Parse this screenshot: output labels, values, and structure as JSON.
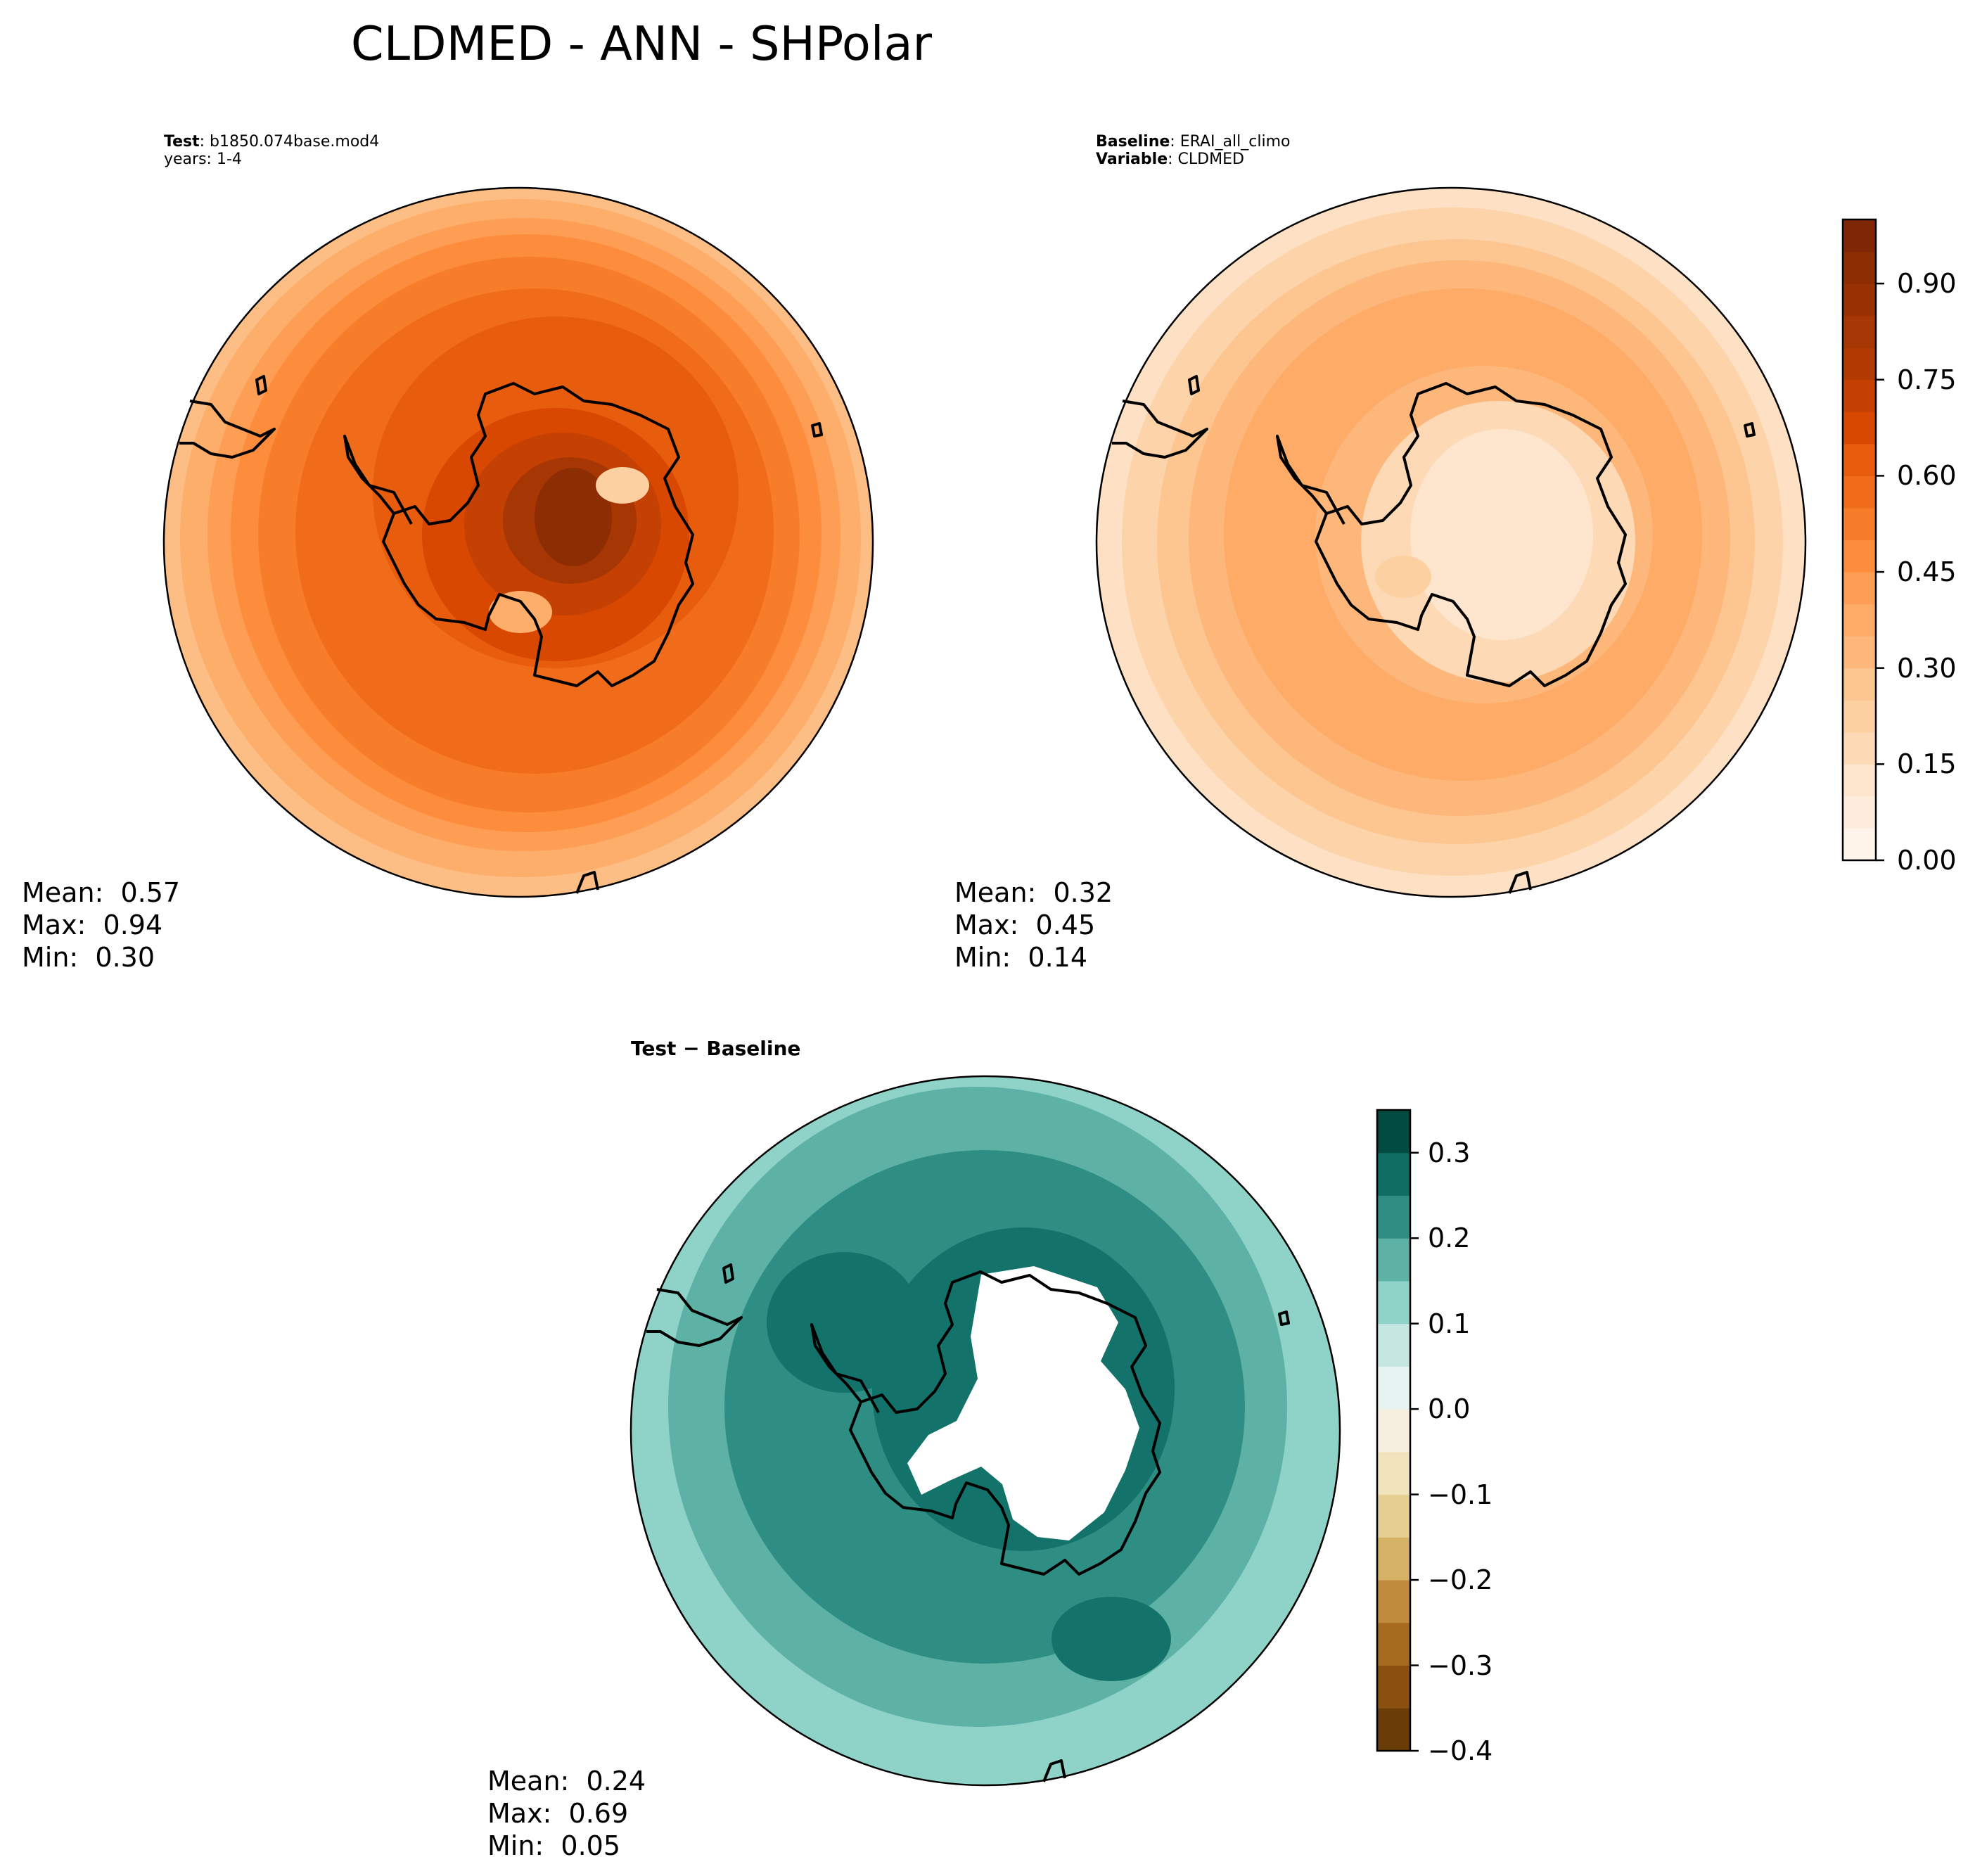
{
  "title": "CLDMED - ANN - SHPolar",
  "colors": {
    "test_ring": [
      "#fdbe85",
      "#fdae6b",
      "#fd9e54",
      "#fd8d3c",
      "#f87d2a",
      "#f16c1a",
      "#e85c0d"
    ],
    "base_ring": [
      "#fee1c4",
      "#fdd3a9",
      "#fdc590",
      "#fdb77a",
      "#fdab67",
      "#fdb77a"
    ],
    "diff_ring": [
      "#8fd3c8",
      "#5db1a5",
      "#2f8e83",
      "#13736a"
    ],
    "antarctica_test": [
      "#8c2d04",
      "#a63603",
      "#c44103",
      "#d94801"
    ],
    "antarctica_base": [
      "#fee6ce",
      "#fdd9b5"
    ]
  },
  "panels": {
    "test": {
      "label_key": "Test",
      "label_value": "b1850.074base.mod4",
      "years": "years: 1-4",
      "mean": "Mean:  0.57",
      "max": "Max:  0.94",
      "min": "Min:  0.30"
    },
    "baseline": {
      "label_key": "Baseline",
      "label_value": "ERAI_all_climo",
      "var_key": "Variable",
      "var_value": "CLDMED",
      "mean": "Mean:  0.32",
      "max": "Max:  0.45",
      "min": "Min:  0.14"
    },
    "diff": {
      "title_a": "Test",
      "title_sep": " − ",
      "title_b": "Baseline",
      "mean": "Mean:  0.24",
      "max": "Max:  0.69",
      "min": "Min:  0.05"
    }
  },
  "colorbars": {
    "main": {
      "ticks": [
        "0.00",
        "0.15",
        "0.30",
        "0.45",
        "0.60",
        "0.75",
        "0.90"
      ],
      "levels": [
        0,
        0.05,
        0.1,
        0.15,
        0.2,
        0.25,
        0.3,
        0.35,
        0.4,
        0.45,
        0.5,
        0.55,
        0.6,
        0.65,
        0.7,
        0.75,
        0.8,
        0.85,
        0.9,
        0.95,
        1.0
      ],
      "colors": [
        "#fff5eb",
        "#feeddc",
        "#fee6ce",
        "#fdd9b5",
        "#fdd0a2",
        "#fdc590",
        "#fdb77a",
        "#fdab67",
        "#fd9e54",
        "#fd8d3c",
        "#f87d2a",
        "#f16c1a",
        "#e85c0d",
        "#d94801",
        "#c44103",
        "#b13a03",
        "#a63603",
        "#993103",
        "#8c2d04",
        "#7f2704"
      ]
    },
    "diff": {
      "ticks": [
        "0.3",
        "0.2",
        "0.1",
        "0.0",
        "−0.1",
        "−0.2",
        "−0.3",
        "−0.4"
      ],
      "tick_values": [
        0.3,
        0.2,
        0.1,
        0.0,
        -0.1,
        -0.2,
        -0.3,
        -0.4
      ],
      "levels": [
        -0.4,
        -0.35,
        -0.3,
        -0.25,
        -0.2,
        -0.15,
        -0.1,
        -0.05,
        0,
        0.05,
        0.1,
        0.15,
        0.2,
        0.25,
        0.3,
        0.35
      ],
      "colors": [
        "#6a3c08",
        "#8a500f",
        "#a66b1f",
        "#c08b3c",
        "#d6b267",
        "#e6cf92",
        "#f1e3bb",
        "#f6efe0",
        "#e6f3f1",
        "#c4e8e1",
        "#8fd3c8",
        "#5db1a5",
        "#2f8e83",
        "#0e6e64",
        "#014b40"
      ]
    }
  },
  "chart_data": [
    {
      "type": "heatmap",
      "panel": "Test",
      "projection": "South Polar Stereographic",
      "variable": "CLDMED",
      "colorbar_range": [
        0.0,
        1.0
      ],
      "colorbar_ticks": [
        0.0,
        0.15,
        0.3,
        0.45,
        0.6,
        0.75,
        0.9
      ],
      "stats": {
        "mean": 0.57,
        "max": 0.94,
        "min": 0.3
      }
    },
    {
      "type": "heatmap",
      "panel": "Baseline",
      "projection": "South Polar Stereographic",
      "variable": "CLDMED",
      "colorbar_range": [
        0.0,
        1.0
      ],
      "colorbar_ticks": [
        0.0,
        0.15,
        0.3,
        0.45,
        0.6,
        0.75,
        0.9
      ],
      "stats": {
        "mean": 0.32,
        "max": 0.45,
        "min": 0.14
      }
    },
    {
      "type": "heatmap",
      "panel": "Test − Baseline",
      "projection": "South Polar Stereographic",
      "variable": "CLDMED",
      "colorbar_range": [
        -0.4,
        0.35
      ],
      "colorbar_ticks": [
        0.3,
        0.2,
        0.1,
        0.0,
        -0.1,
        -0.2,
        -0.3,
        -0.4
      ],
      "stats": {
        "mean": 0.24,
        "max": 0.69,
        "min": 0.05
      }
    }
  ]
}
